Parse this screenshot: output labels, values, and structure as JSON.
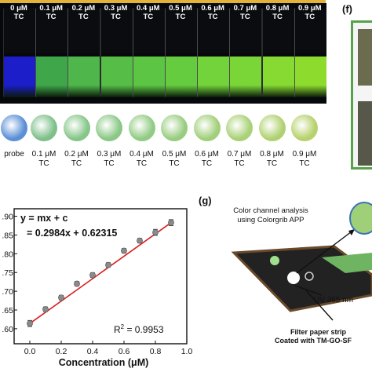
{
  "cuvettes": [
    {
      "label": "0 μM",
      "sub": "TC",
      "color": "#1b1ec9"
    },
    {
      "label": "0.1 μM",
      "sub": "TC",
      "color": "#3fa64a"
    },
    {
      "label": "0.2 μM",
      "sub": "TC",
      "color": "#4fb64b"
    },
    {
      "label": "0.3 μM",
      "sub": "TC",
      "color": "#56bd47"
    },
    {
      "label": "0.4 μM",
      "sub": "TC",
      "color": "#5cc543"
    },
    {
      "label": "0.5 μM",
      "sub": "TC",
      "color": "#66cc3f"
    },
    {
      "label": "0.6 μM",
      "sub": "TC",
      "color": "#72d33a"
    },
    {
      "label": "0.7 μM",
      "sub": "TC",
      "color": "#7ad636"
    },
    {
      "label": "0.8 μM",
      "sub": "TC",
      "color": "#86da31"
    },
    {
      "label": "0.9 μM",
      "sub": "TC",
      "color": "#8ddc2d"
    }
  ],
  "spots": [
    {
      "label": "probe",
      "sub": "",
      "color": "#5b8fd6"
    },
    {
      "label": "0.1 μM",
      "sub": "TC",
      "color": "#7fc08a"
    },
    {
      "label": "0.2 μM",
      "sub": "TC",
      "color": "#86c689"
    },
    {
      "label": "0.3 μM",
      "sub": "TC",
      "color": "#8bc886"
    },
    {
      "label": "0.4 μM",
      "sub": "TC",
      "color": "#91cb84"
    },
    {
      "label": "0.5 μM",
      "sub": "TC",
      "color": "#98cd80"
    },
    {
      "label": "0.6 μM",
      "sub": "TC",
      "color": "#a1cf7a"
    },
    {
      "label": "0.7 μM",
      "sub": "TC",
      "color": "#a9d176"
    },
    {
      "label": "0.8 μM",
      "sub": "TC",
      "color": "#b0d171"
    },
    {
      "label": "0.9 μM",
      "sub": "TC",
      "color": "#b7d16c"
    }
  ],
  "panel_f": {
    "label": "(f)",
    "border_color": "#56a24a"
  },
  "panel_g": {
    "label": "(g)",
    "analysis_line1": "Color channel analysis",
    "analysis_line2": "using Colorgrib APP",
    "uv_label": "UV 365 nm",
    "strip_line1": "Filter paper strip",
    "strip_line2": "Coated with TM-GO-SF"
  },
  "chart_data": {
    "type": "scatter",
    "equation": "y = mx + c",
    "fit": "= 0.2984x + 0.62315",
    "r2_label": "R",
    "r2_sup": "2",
    "r2_value": " = 0.9953",
    "xlabel": "Concentration (μM)",
    "ylabel": "",
    "xlim": [
      -0.1,
      1.0
    ],
    "ylim": [
      0.56,
      0.92
    ],
    "xticks": [
      "0.0",
      "0.2",
      "0.4",
      "0.6",
      "0.8",
      "1.0"
    ],
    "yticks": [
      ".60",
      ".65",
      ".70",
      ".75",
      ".80",
      ".85",
      ".90"
    ],
    "x": [
      0.0,
      0.1,
      0.2,
      0.3,
      0.4,
      0.5,
      0.6,
      0.7,
      0.8,
      0.9
    ],
    "y": [
      0.614,
      0.652,
      0.683,
      0.72,
      0.743,
      0.77,
      0.808,
      0.835,
      0.857,
      0.883
    ],
    "err": [
      0.008,
      0.006,
      0.006,
      0.006,
      0.006,
      0.006,
      0.006,
      0.006,
      0.008,
      0.008
    ],
    "line_x": [
      0.0,
      0.9
    ],
    "line_color": "#d62020",
    "marker_color": "#8a8a8a"
  }
}
